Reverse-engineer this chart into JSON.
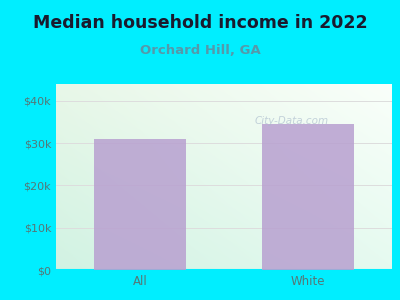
{
  "title": "Median household income in 2022",
  "subtitle": "Orchard Hill, GA",
  "categories": [
    "All",
    "White"
  ],
  "values": [
    31000,
    34500
  ],
  "bar_color": "#b8a0d0",
  "title_fontsize": 12.5,
  "subtitle_fontsize": 9.5,
  "subtitle_color": "#5599aa",
  "title_color": "#1a1a2e",
  "background_color": "#00eeff",
  "plot_bg_top_left": "#f0f8ee",
  "plot_bg_top_right": "#ffffff",
  "plot_bg_bottom_left": "#c8eedd",
  "plot_bg_bottom_right": "#e8f8f0",
  "yticks": [
    0,
    10000,
    20000,
    30000,
    40000
  ],
  "ytick_labels": [
    "$0",
    "$10k",
    "$20k",
    "$30k",
    "$40k"
  ],
  "ylim": [
    0,
    44000
  ],
  "tick_color": "#557777",
  "watermark": "City-Data.com",
  "grid_color": "#dddddd",
  "bar_width": 0.55
}
